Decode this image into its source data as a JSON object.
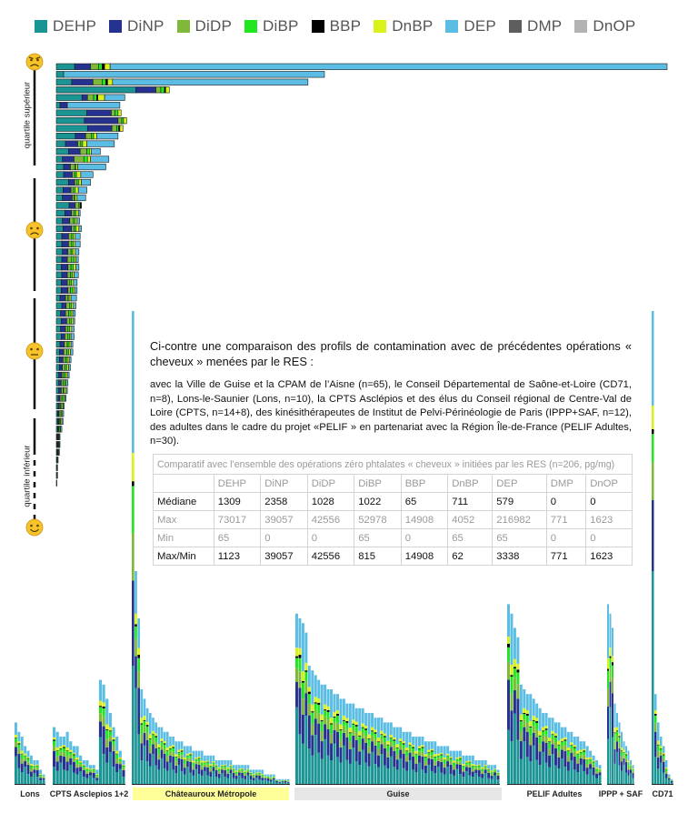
{
  "legend": [
    {
      "name": "DEHP",
      "color": "#1b9494"
    },
    {
      "name": "DiNP",
      "color": "#25328f"
    },
    {
      "name": "DiDP",
      "color": "#7fb93a"
    },
    {
      "name": "DiBP",
      "color": "#22e61f"
    },
    {
      "name": "BBP",
      "color": "#000000"
    },
    {
      "name": "DnBP",
      "color": "#d9f21a"
    },
    {
      "name": "DEP",
      "color": "#5bbde3"
    },
    {
      "name": "DMP",
      "color": "#5e5e5e"
    },
    {
      "name": "DnOP",
      "color": "#b3b3b3"
    }
  ],
  "quartile_labels": {
    "upper": "quartile supérieur",
    "lower": "quartile inférieur"
  },
  "intro_text": "Ci-contre une comparaison des profils de contamination avec de précédentes opérations « cheveux » menées par le RES :",
  "detail_text": "avec la Ville de Guise et la CPAM de l’Aisne (n=65), le Conseil Départemental de Saône-et-Loire (CD71, n=8), Lons-le-Saunier (Lons, n=10), la CPTS Asclépios et des élus du Conseil régional de Centre-Val de Loire (CPTS, n=14+8), des kinésithérapeutes de Institut de Pelvi-Périnéologie de Paris (IPPP+SAF, n=12), des adultes dans le cadre du projet «PELIF » en partenariat avec la Région Île-de-France (PELIF Adultes, n=30).",
  "table": {
    "caption": "Comparatif avec l’ensemble des opérations zéro phtalates « cheveux » initiées par les RES (n=206, pg/mg)",
    "headers": [
      "",
      "DEHP",
      "DiNP",
      "DiDP",
      "DiBP",
      "BBP",
      "DnBP",
      "DEP",
      "DMP",
      "DnOP"
    ],
    "rows": [
      {
        "label": "Médiane",
        "values": [
          "1309",
          "2358",
          "1028",
          "1022",
          "65",
          "711",
          "579",
          "0",
          "0"
        ],
        "style": "dark"
      },
      {
        "label": "Max",
        "values": [
          "73017",
          "39057",
          "42556",
          "52978",
          "14908",
          "4052",
          "216982",
          "771",
          "1623"
        ],
        "style": "light"
      },
      {
        "label": "Min",
        "values": [
          "65",
          "0",
          "0",
          "65",
          "0",
          "65",
          "65",
          "0",
          "0"
        ],
        "style": "light"
      },
      {
        "label": "Max/Min",
        "values": [
          "1123",
          "39057",
          "42556",
          "815",
          "14908",
          "62",
          "3338",
          "771",
          "1623"
        ],
        "style": "dark"
      }
    ]
  },
  "group_labels": [
    "Lons",
    "CPTS Asclepios 1+2",
    "Châteauroux Métropole",
    "Guise",
    "PELIF Adultes",
    "IPPP + SAF",
    "CD71"
  ],
  "chart_data": {
    "type": "bar",
    "charts": [
      {
        "name": "horizontal stacked bars (Châteauroux Métropole participants)",
        "orientation": "horizontal",
        "stack_order": [
          "DEHP",
          "DiNP",
          "DiDP",
          "DiBP",
          "BBP",
          "DnBP",
          "DEP"
        ],
        "max_value": 100,
        "values": [
          [
            3.0,
            2.6,
            1.3,
            0.6,
            0.4,
            0.9,
            91.2
          ],
          [
            1.2,
            0.0,
            0.0,
            0.0,
            0.0,
            0.0,
            42.7
          ],
          [
            2.5,
            3.5,
            1.5,
            0.6,
            0.3,
            0.8,
            32.0
          ],
          [
            13.0,
            3.3,
            0.8,
            0.6,
            0.2,
            0.6,
            0.0
          ],
          [
            4.2,
            0.9,
            1.0,
            0.5,
            0.2,
            1.1,
            3.3
          ],
          [
            0.6,
            1.2,
            0.0,
            0.0,
            0.0,
            0.0,
            8.6
          ],
          [
            5.0,
            4.0,
            0.6,
            0.5,
            0.0,
            0.5,
            0.0
          ],
          [
            4.6,
            5.5,
            0.6,
            0.3,
            0.0,
            0.5,
            0.0
          ],
          [
            5.1,
            4.0,
            0.8,
            0.3,
            0.2,
            0.5,
            0.0
          ],
          [
            3.1,
            1.7,
            0.9,
            0.4,
            0.0,
            0.5,
            3.5
          ],
          [
            1.5,
            2.0,
            0.5,
            0.3,
            0.0,
            0.7,
            4.5
          ],
          [
            2.0,
            1.9,
            1.1,
            0.4,
            0.0,
            0.3,
            1.5
          ],
          [
            1.0,
            1.9,
            1.6,
            0.6,
            0.0,
            0.5,
            3.0
          ],
          [
            1.2,
            1.1,
            0.7,
            0.2,
            0.0,
            0.3,
            4.6
          ],
          [
            1.2,
            1.4,
            0.4,
            0.3,
            0.0,
            0.7,
            2.0
          ],
          [
            2.0,
            1.0,
            0.4,
            0.3,
            0.0,
            0.4,
            1.5
          ],
          [
            1.1,
            1.3,
            0.4,
            0.3,
            0.0,
            0.5,
            1.4
          ],
          [
            1.0,
            1.6,
            0.3,
            0.2,
            0.0,
            0.3,
            1.4
          ],
          [
            2.1,
            1.0,
            0.6,
            0.2,
            0.2,
            0.0,
            0.0
          ],
          [
            1.4,
            1.1,
            0.4,
            0.3,
            0.0,
            0.4,
            0.3
          ],
          [
            1.0,
            1.2,
            0.6,
            0.3,
            0.0,
            0.3,
            0.4
          ],
          [
            1.1,
            1.4,
            0.4,
            0.3,
            0.0,
            0.5,
            0.4
          ],
          [
            0.9,
            1.1,
            0.5,
            0.3,
            0.0,
            0.3,
            0.8
          ],
          [
            0.9,
            1.1,
            0.5,
            0.3,
            0.0,
            0.3,
            0.8
          ],
          [
            1.0,
            0.9,
            0.5,
            0.3,
            0.0,
            0.4,
            0.6
          ],
          [
            0.9,
            0.9,
            0.7,
            0.4,
            0.0,
            0.3,
            0.4
          ],
          [
            0.8,
            1.1,
            0.5,
            0.4,
            0.0,
            0.4,
            0.5
          ],
          [
            0.9,
            0.9,
            0.5,
            0.3,
            0.0,
            0.3,
            0.7
          ],
          [
            0.8,
            1.0,
            0.4,
            0.3,
            0.0,
            0.3,
            0.6
          ],
          [
            0.8,
            1.1,
            0.4,
            0.4,
            0.0,
            0.3,
            0.4
          ],
          [
            0.6,
            0.9,
            0.4,
            0.2,
            0.0,
            0.3,
            0.9
          ],
          [
            0.9,
            0.7,
            0.6,
            0.3,
            0.0,
            0.3,
            0.4
          ],
          [
            0.7,
            0.8,
            0.5,
            0.4,
            0.0,
            0.3,
            0.4
          ],
          [
            0.8,
            0.9,
            0.5,
            0.3,
            0.0,
            0.3,
            0.2
          ],
          [
            0.7,
            0.8,
            0.4,
            0.3,
            0.0,
            0.3,
            0.4
          ],
          [
            0.8,
            0.6,
            0.5,
            0.3,
            0.0,
            0.2,
            0.5
          ],
          [
            0.6,
            0.7,
            0.5,
            0.3,
            0.0,
            0.3,
            0.3
          ],
          [
            0.5,
            0.7,
            0.5,
            0.3,
            0.0,
            0.3,
            0.4
          ],
          [
            0.5,
            0.6,
            0.4,
            0.3,
            0.0,
            0.3,
            0.3
          ],
          [
            0.5,
            0.5,
            0.4,
            0.3,
            0.0,
            0.3,
            0.3
          ],
          [
            0.4,
            0.5,
            0.3,
            0.3,
            0.0,
            0.3,
            0.3
          ],
          [
            0.4,
            0.4,
            0.3,
            0.3,
            0.0,
            0.2,
            0.3
          ],
          [
            0.4,
            0.4,
            0.3,
            0.2,
            0.0,
            0.3,
            0.2
          ],
          [
            0.3,
            0.3,
            0.3,
            0.3,
            0.0,
            0.2,
            0.2
          ],
          [
            0.3,
            0.2,
            0.2,
            0.2,
            0.0,
            0.2,
            0.2
          ],
          [
            0.2,
            0.2,
            0.2,
            0.2,
            0.0,
            0.2,
            0.2
          ],
          [
            0.2,
            0.2,
            0.1,
            0.2,
            0.0,
            0.2,
            0.2
          ],
          [
            0.2,
            0.1,
            0.1,
            0.2,
            0.0,
            0.1,
            0.2
          ],
          [
            0.1,
            0.1,
            0.1,
            0.1,
            0.0,
            0.1,
            0.1
          ],
          [
            0.1,
            0.1,
            0.1,
            0.1,
            0.0,
            0.1,
            0.1
          ],
          [
            0.1,
            0.1,
            0.0,
            0.1,
            0.0,
            0.1,
            0.1
          ],
          [
            0.1,
            0.0,
            0.0,
            0.1,
            0.0,
            0.0,
            0.1
          ],
          [
            0.1,
            0.0,
            0.0,
            0.0,
            0.0,
            0.0,
            0.1
          ],
          [
            0.0,
            0.0,
            0.0,
            0.1,
            0.0,
            0.0,
            0.1
          ],
          [
            0.0,
            0.0,
            0.0,
            0.0,
            0.0,
            0.0,
            0.1
          ]
        ]
      },
      {
        "name": "vertical stacked bars comparison",
        "orientation": "vertical",
        "stack_order": [
          "DEHP",
          "DiNP",
          "DiDP",
          "DiBP",
          "BBP",
          "DnBP",
          "DEP"
        ],
        "max_value": 100,
        "groups": [
          {
            "label": "Lons",
            "totals": [
              13,
              11,
              10,
              8,
              7,
              6,
              5,
              5,
              3,
              2
            ]
          },
          {
            "label": "CPTS Asclepios 1+2",
            "totals": [
              12,
              11,
              10,
              10,
              11,
              9,
              8,
              8,
              6,
              5,
              5,
              4,
              4,
              3,
              22,
              21,
              18,
              15,
              12,
              10,
              7,
              5
            ]
          },
          {
            "label": "Châteauroux Métropole",
            "totals": [
              100,
              45,
              35,
              20,
              18,
              16,
              15,
              14,
              13,
              12,
              12,
              11,
              11,
              10,
              10,
              9,
              9,
              9,
              8,
              8,
              8,
              7,
              7,
              7,
              7,
              6,
              6,
              6,
              6,
              5,
              5,
              5,
              5,
              5,
              5,
              4,
              4,
              4,
              4,
              4,
              4,
              3,
              3,
              3,
              3,
              3,
              2,
              2,
              2,
              2,
              1,
              1,
              1,
              1,
              1
            ]
          },
          {
            "label": "Guise",
            "totals": [
              36,
              35,
              34,
              32,
              25,
              24,
              23,
              22,
              21,
              21,
              20,
              20,
              19,
              19,
              18,
              18,
              17,
              17,
              17,
              16,
              16,
              16,
              15,
              15,
              15,
              14,
              14,
              14,
              13,
              13,
              13,
              12,
              12,
              12,
              11,
              11,
              11,
              10,
              10,
              10,
              10,
              9,
              9,
              9,
              9,
              8,
              8,
              8,
              8,
              7,
              7,
              7,
              7,
              6,
              6,
              6,
              6,
              5,
              5,
              5,
              5,
              4,
              4,
              4,
              3
            ]
          },
          {
            "label": "PELIF Adultes",
            "totals": [
              38,
              36,
              33,
              31,
              21,
              20,
              19,
              19,
              18,
              17,
              16,
              15,
              15,
              14,
              14,
              13,
              13,
              12,
              12,
              11,
              11,
              10,
              10,
              9,
              9,
              8,
              7,
              6,
              5,
              4
            ]
          },
          {
            "label": "IPPP + SAF",
            "totals": [
              38,
              36,
              33,
              17,
              15,
              13,
              11,
              9,
              8,
              7,
              5,
              4
            ]
          },
          {
            "label": "CD71",
            "totals": [
              100,
              19,
              13,
              10,
              8,
              5,
              2,
              1
            ]
          }
        ]
      }
    ]
  }
}
